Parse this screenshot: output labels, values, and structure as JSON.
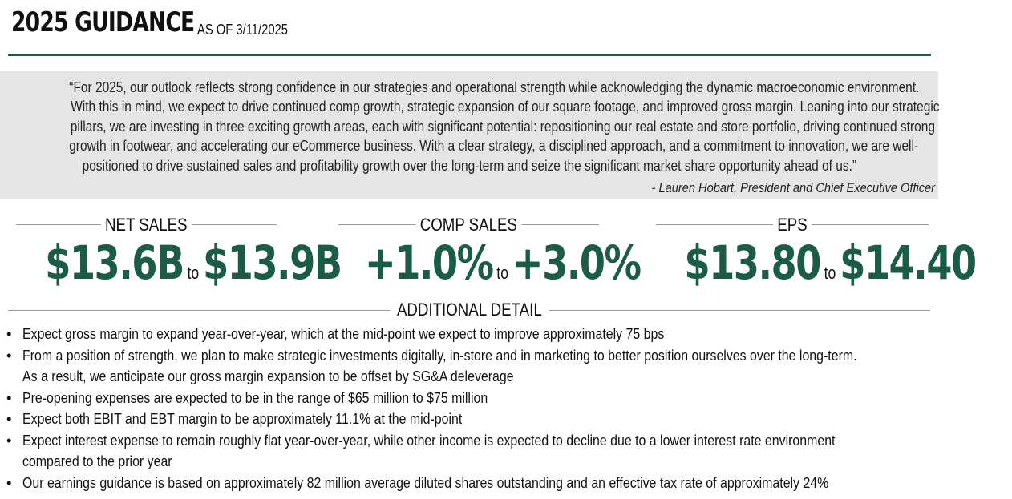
{
  "header": {
    "title": "2025 GUIDANCE",
    "as_of": "AS OF 3/11/2025"
  },
  "quote": {
    "lines": [
      "“For 2025, our outlook reflects strong confidence in our strategies and operational strength while acknowledging the dynamic macroeconomic environment.",
      "With this in mind, we expect to drive continued comp growth, strategic expansion of our square footage, and improved gross margin. Leaning into our strategic",
      "pillars, we are investing in three exciting growth areas, each with significant potential:  repositioning our real estate and store portfolio, driving continued strong",
      "growth in footwear, and accelerating our eCommerce business. With a clear strategy, a disciplined approach, and a commitment to innovation, we are well-",
      "positioned to drive sustained sales and profitability growth over the long-term and seize the significant market share opportunity ahead of us.”"
    ],
    "attribution": "- Lauren Hobart, President and Chief Executive Officer"
  },
  "metrics": [
    {
      "label": "NET SALES",
      "low": "$13.6B",
      "to": "to",
      "high": "$13.9B"
    },
    {
      "label": "COMP SALES",
      "low": "+1.0%",
      "to": "to",
      "high": "+3.0%"
    },
    {
      "label": "EPS",
      "low": "$13.80",
      "to": "to",
      "high": "$14.40"
    }
  ],
  "additional_detail": {
    "label": "ADDITIONAL DETAIL",
    "bullet_glyph": "•",
    "bullets": [
      [
        "Expect gross margin to expand year-over-year, which at the mid-point we expect to improve approximately 75 bps"
      ],
      [
        "From a position of strength, we plan to make strategic investments digitally, in-store and in marketing to better position ourselves over the long-term.",
        "As a result, we anticipate our gross margin expansion to be offset by SG&A deleverage"
      ],
      [
        "Pre-opening expenses are expected to be in the range of $65 million to $75 million"
      ],
      [
        "Expect both EBIT and EBT margin to be approximately 11.1% at the mid-point"
      ],
      [
        "Expect interest expense to remain roughly flat year-over-year, while other income is expected to decline due to a lower interest rate environment",
        "compared to the prior year"
      ],
      [
        "Our earnings guidance is based on approximately 82 million average diluted shares outstanding and an effective tax rate of approximately 24%"
      ]
    ]
  },
  "colors": {
    "accent_green": "#1a5c45",
    "quote_background": "#e5e5e5"
  }
}
